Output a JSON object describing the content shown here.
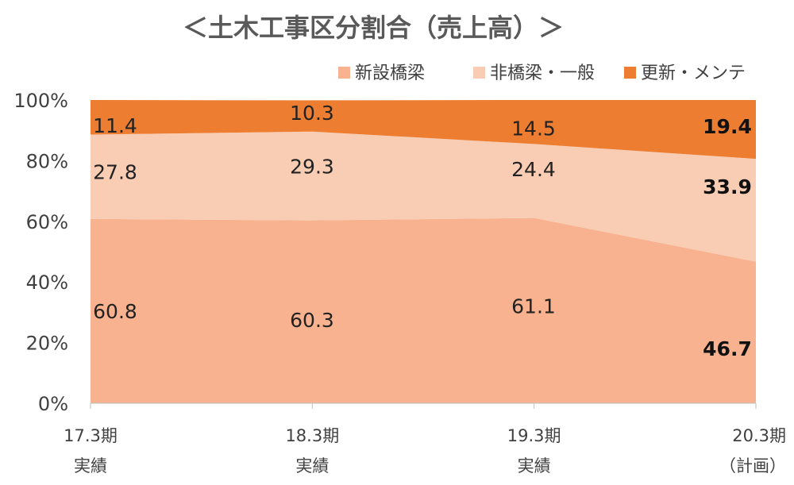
{
  "chart_data": {
    "type": "area",
    "stacked_percent": true,
    "title": "＜土木工事区分割合（売上高）＞",
    "categories": [
      "17.3期",
      "18.3期",
      "19.3期",
      "20.3期"
    ],
    "category_sublabels": [
      "実績",
      "実績",
      "実績",
      "（計画）"
    ],
    "series": [
      {
        "name": "新設橋梁",
        "color": "#F8B28F",
        "values": [
          60.8,
          60.3,
          61.1,
          46.7
        ]
      },
      {
        "name": "非橋梁・一般",
        "color": "#F8CDB4",
        "values": [
          27.8,
          29.3,
          24.4,
          33.9
        ]
      },
      {
        "name": "更新・メンテ",
        "color": "#ED7D31",
        "values": [
          11.4,
          10.3,
          14.5,
          19.4
        ]
      }
    ],
    "y_ticks": [
      "0%",
      "20%",
      "40%",
      "60%",
      "80%",
      "100%"
    ],
    "ylim": [
      0,
      100
    ],
    "legend_position": "top-right",
    "grid": false,
    "bold_labels_category_index": 3
  }
}
